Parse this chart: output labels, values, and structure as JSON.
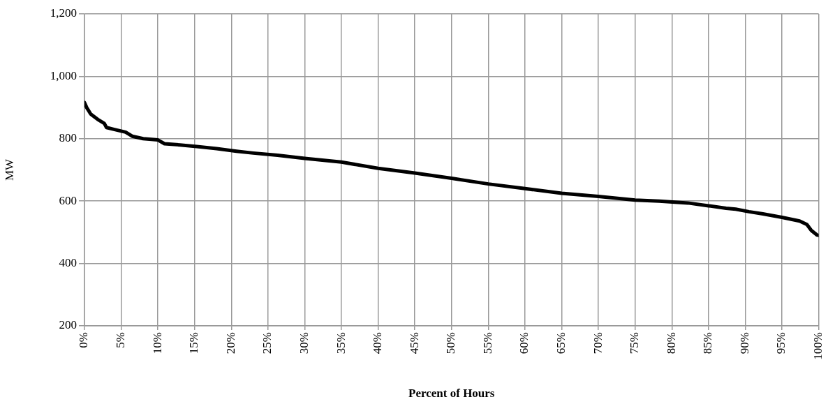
{
  "chart_data": {
    "type": "line",
    "xlabel": "Percent of Hours",
    "ylabel": "MW",
    "xlim": [
      0,
      100
    ],
    "ylim": [
      200,
      1200
    ],
    "xticks": [
      {
        "value": 0,
        "label": "0%"
      },
      {
        "value": 5,
        "label": "5%"
      },
      {
        "value": 10,
        "label": "10%"
      },
      {
        "value": 15,
        "label": "15%"
      },
      {
        "value": 20,
        "label": "20%"
      },
      {
        "value": 25,
        "label": "25%"
      },
      {
        "value": 30,
        "label": "30%"
      },
      {
        "value": 35,
        "label": "35%"
      },
      {
        "value": 40,
        "label": "40%"
      },
      {
        "value": 45,
        "label": "45%"
      },
      {
        "value": 50,
        "label": "50%"
      },
      {
        "value": 55,
        "label": "55%"
      },
      {
        "value": 60,
        "label": "60%"
      },
      {
        "value": 65,
        "label": "65%"
      },
      {
        "value": 70,
        "label": "70%"
      },
      {
        "value": 75,
        "label": "75%"
      },
      {
        "value": 80,
        "label": "80%"
      },
      {
        "value": 85,
        "label": "85%"
      },
      {
        "value": 90,
        "label": "90%"
      },
      {
        "value": 95,
        "label": "95%"
      },
      {
        "value": 100,
        "label": "100%"
      }
    ],
    "yticks": [
      {
        "value": 200,
        "label": "200"
      },
      {
        "value": 400,
        "label": "400"
      },
      {
        "value": 600,
        "label": "600"
      },
      {
        "value": 800,
        "label": "800"
      },
      {
        "value": 1000,
        "label": "1,000"
      },
      {
        "value": 1200,
        "label": "1,200"
      }
    ],
    "grid": true,
    "legend": false,
    "marker": "none",
    "line_style": "solid",
    "series": [
      {
        "color": "#000000",
        "x": [
          0,
          0.3,
          0.85,
          1.8,
          2.7,
          3,
          4,
          5.6,
          6.5,
          8,
          10,
          10.9,
          13,
          15.3,
          18,
          20.7,
          23,
          26.3,
          30,
          35,
          40,
          45,
          50,
          55,
          60,
          65,
          70,
          75,
          78.3,
          82.2,
          85,
          87.4,
          88.7,
          90.5,
          92.4,
          95,
          97.4,
          98.4,
          99,
          99.8,
          100
        ],
        "values": [
          916,
          900,
          879,
          862,
          849,
          836,
          830,
          821,
          808,
          800,
          796,
          784,
          780,
          775,
          768,
          760,
          754,
          747,
          737,
          725,
          705,
          690,
          673,
          655,
          640,
          625,
          615,
          603,
          600,
          594,
          585,
          577,
          574,
          566,
          559,
          548,
          536,
          525,
          506,
          491,
          490
        ]
      }
    ]
  }
}
